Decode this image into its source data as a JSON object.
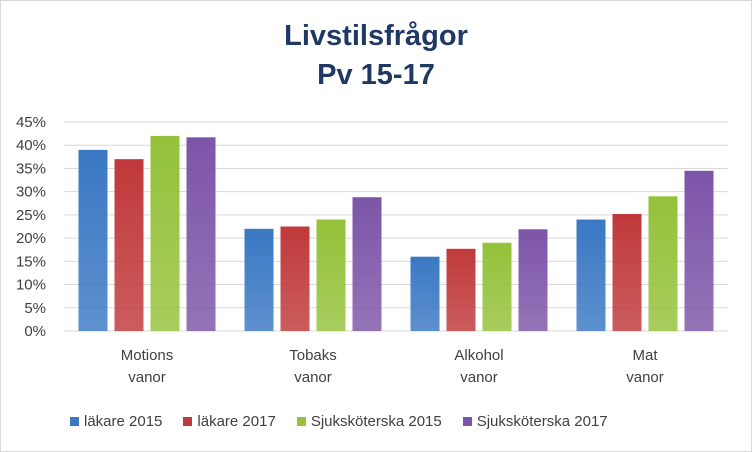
{
  "chart_data": {
    "type": "bar",
    "title_lines": [
      "Livstilsfrågor",
      "Pv 15-17"
    ],
    "categories": [
      [
        "Motions",
        "vanor"
      ],
      [
        "Tobaks",
        "vanor"
      ],
      [
        "Alkohol",
        "vanor"
      ],
      [
        "Mat",
        "vanor"
      ]
    ],
    "series": [
      {
        "name": "läkare 2015",
        "color": "#3a78c4",
        "values": [
          39,
          22,
          16,
          24
        ]
      },
      {
        "name": "läkare 2017",
        "color": "#c0393a",
        "values": [
          37,
          22.5,
          17.7,
          25.2
        ]
      },
      {
        "name": "Sjuksköterska 2015",
        "color": "#94c23a",
        "values": [
          42,
          24,
          19,
          29
        ]
      },
      {
        "name": "Sjuksköterska 2017",
        "color": "#7d55a8",
        "values": [
          41.7,
          28.8,
          21.9,
          34.5
        ]
      }
    ],
    "y_ticks": [
      "0%",
      "5%",
      "10%",
      "15%",
      "20%",
      "25%",
      "30%",
      "35%",
      "40%",
      "45%"
    ],
    "ylim": [
      0,
      45
    ],
    "y_unit": "percent",
    "grid": true,
    "legend_position": "bottom"
  }
}
